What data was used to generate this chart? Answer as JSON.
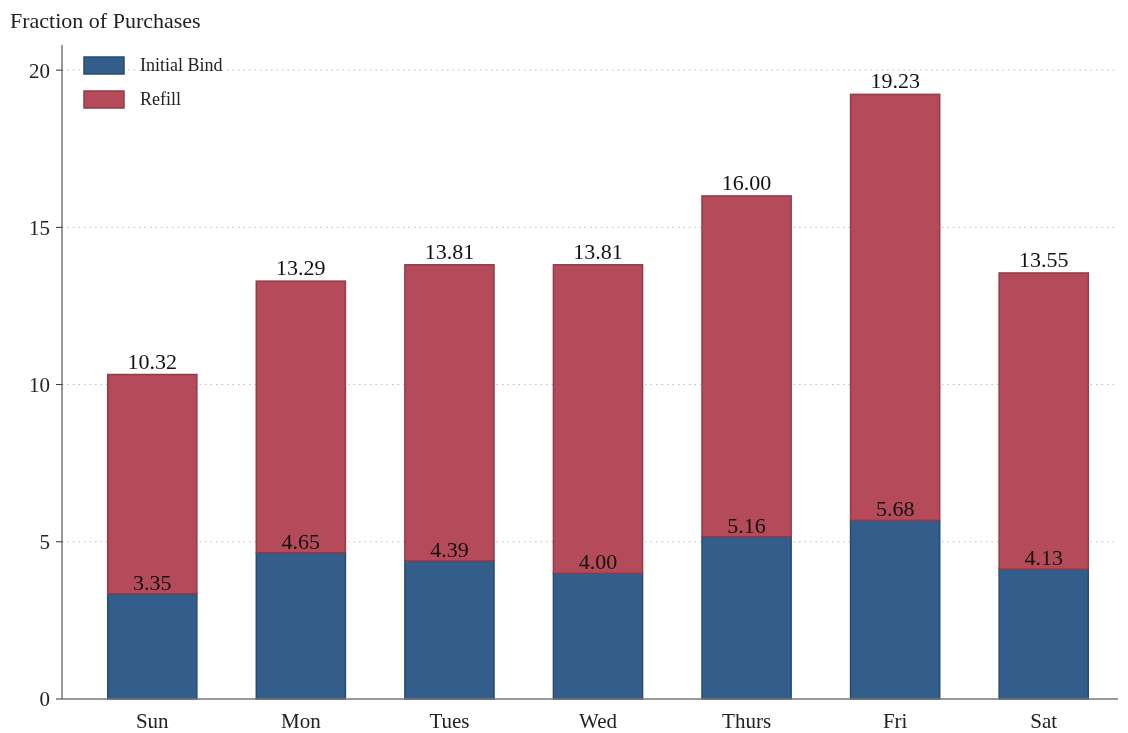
{
  "chart_data": {
    "type": "bar",
    "ylabel": "Fraction of Purchases",
    "categories": [
      "Sun",
      "Mon",
      "Tues",
      "Wed",
      "Thurs",
      "Fri",
      "Sat"
    ],
    "stacked": true,
    "series": [
      {
        "name": "Initial Bind",
        "color": "#335d8a",
        "values": [
          3.35,
          4.65,
          4.39,
          4.0,
          5.16,
          5.68,
          4.13
        ],
        "value_labels": [
          "3.35",
          "4.65",
          "4.39",
          "4.00",
          "5.16",
          "5.68",
          "4.13"
        ]
      },
      {
        "name": "Refill",
        "color": "#b54a5a",
        "values": [
          6.97,
          8.64,
          9.42,
          9.81,
          10.84,
          13.55,
          9.42
        ]
      }
    ],
    "totals": [
      "10.32",
      "13.29",
      "13.81",
      "13.81",
      "16.00",
      "19.23",
      "13.55"
    ],
    "ylim": [
      0,
      20.8
    ],
    "yticks": [
      0,
      5,
      10,
      15,
      20
    ],
    "grid": "y",
    "legend": "top left"
  }
}
